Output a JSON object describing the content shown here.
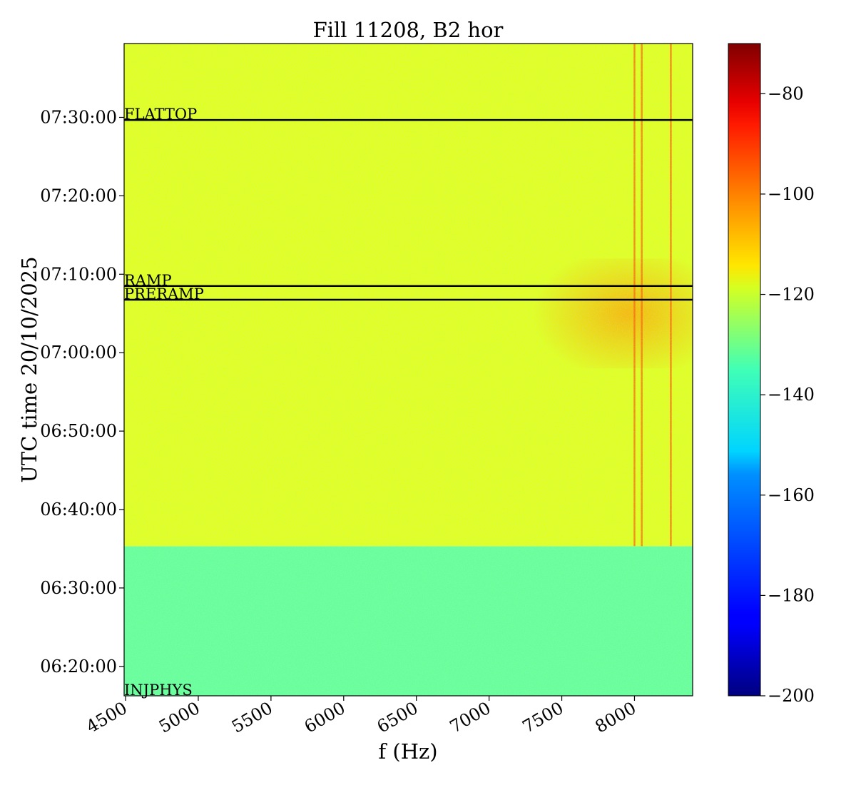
{
  "chart_data": {
    "type": "heatmap",
    "title": "Fill 11208, B2 hor",
    "xlabel": "f (Hz)",
    "ylabel": "UTC time 20/10/2025",
    "x_ticks": [
      "4500",
      "5000",
      "5500",
      "6000",
      "6500",
      "7000",
      "7500",
      "8000"
    ],
    "y_ticks": [
      "06:20:00",
      "06:30:00",
      "06:40:00",
      "06:50:00",
      "07:00:00",
      "07:10:00",
      "07:20:00",
      "07:30:00"
    ],
    "xlim": [
      4490,
      8400
    ],
    "ylim": [
      "06:16:15",
      "07:39:25"
    ],
    "colormap": "jet",
    "colorbar": {
      "range": [
        -200,
        -70
      ],
      "ticks": [
        "−200",
        "−180",
        "−160",
        "−140",
        "−120",
        "−100",
        "−80"
      ]
    },
    "phases": [
      {
        "label": "INJPHYS",
        "time": "06:16:15"
      },
      {
        "label": "PRERAMP",
        "time": "07:06:45"
      },
      {
        "label": "RAMP",
        "time": "07:08:30"
      },
      {
        "label": "FLATTOP",
        "time": "07:29:40"
      }
    ],
    "background_levels": [
      {
        "from": "06:16:15",
        "to": "06:35:20",
        "level_db": -138
      },
      {
        "from": "06:35:20",
        "to": "07:39:25",
        "level_db": -122
      }
    ],
    "high_power_region": {
      "f_from": 7300,
      "f_to": 8400,
      "t_from": "06:58:00",
      "t_to": "07:12:00",
      "level_db": -108
    },
    "strong_lines_hz": [
      8000,
      8050,
      8250
    ]
  }
}
